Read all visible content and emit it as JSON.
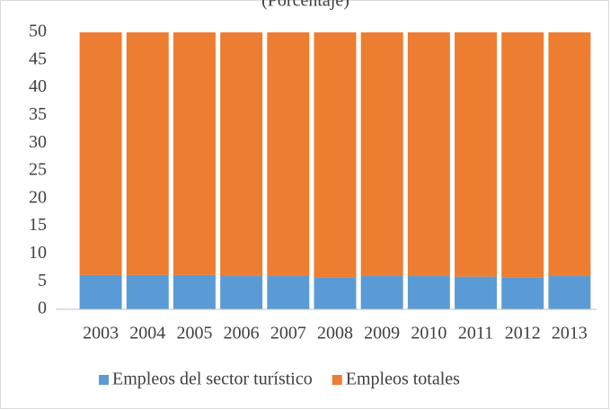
{
  "chart_data": {
    "type": "stacked_bar",
    "subtitle": "(Porcentaje)",
    "categories": [
      "2003",
      "2004",
      "2005",
      "2006",
      "2007",
      "2008",
      "2009",
      "2010",
      "2011",
      "2012",
      "2013"
    ],
    "series": [
      {
        "name": "Empleos del sector turístico",
        "color": "#5b9bd5",
        "values": [
          6.2,
          6.2,
          6.2,
          6.0,
          6.0,
          5.8,
          6.0,
          6.0,
          5.9,
          5.8,
          6.0
        ]
      },
      {
        "name": "Empleos totales",
        "color": "#ed7d31",
        "values": [
          43.8,
          43.8,
          43.8,
          44.0,
          44.0,
          44.2,
          44.0,
          44.0,
          44.1,
          44.2,
          44.0
        ]
      }
    ],
    "ylim": [
      0,
      50
    ],
    "yticks": [
      0,
      5,
      10,
      15,
      20,
      25,
      30,
      35,
      40,
      45,
      50
    ],
    "grid": false,
    "legend": "bottom"
  }
}
